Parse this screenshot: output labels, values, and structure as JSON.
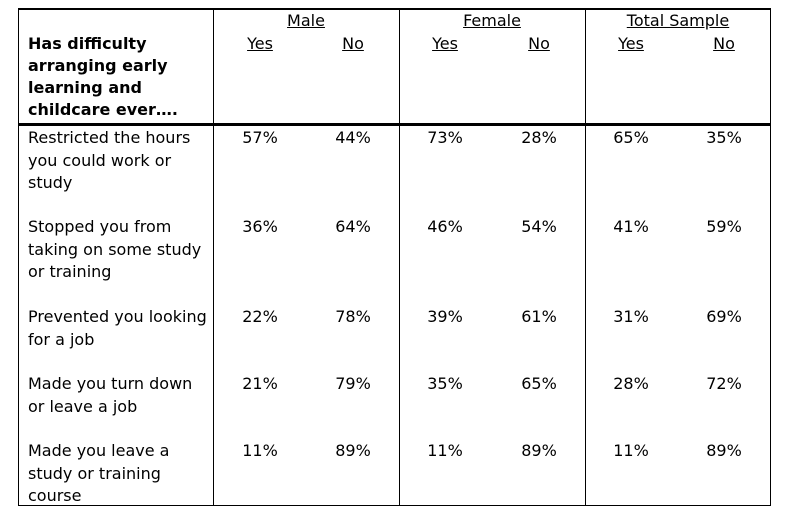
{
  "table": {
    "question_header": "Has difficulty arranging early learning and childcare ever….",
    "groups": [
      "Male",
      "Female",
      "Total Sample"
    ],
    "subheaders": [
      "Yes",
      "No"
    ],
    "rows": [
      {
        "label": "Restricted the hours you could work or study",
        "values": [
          "57%",
          "44%",
          "73%",
          "28%",
          "65%",
          "35%"
        ]
      },
      {
        "label": "Stopped you from taking on some study or training",
        "values": [
          "36%",
          "64%",
          "46%",
          "54%",
          "41%",
          "59%"
        ]
      },
      {
        "label": "Prevented you looking for a job",
        "values": [
          "22%",
          "78%",
          "39%",
          "61%",
          "31%",
          "69%"
        ]
      },
      {
        "label": "Made you turn down or leave a job",
        "values": [
          "21%",
          "79%",
          "35%",
          "65%",
          "28%",
          "72%"
        ]
      },
      {
        "label": "Made you leave a study or training course",
        "values": [
          "11%",
          "89%",
          "11%",
          "89%",
          "11%",
          "89%"
        ]
      }
    ]
  }
}
